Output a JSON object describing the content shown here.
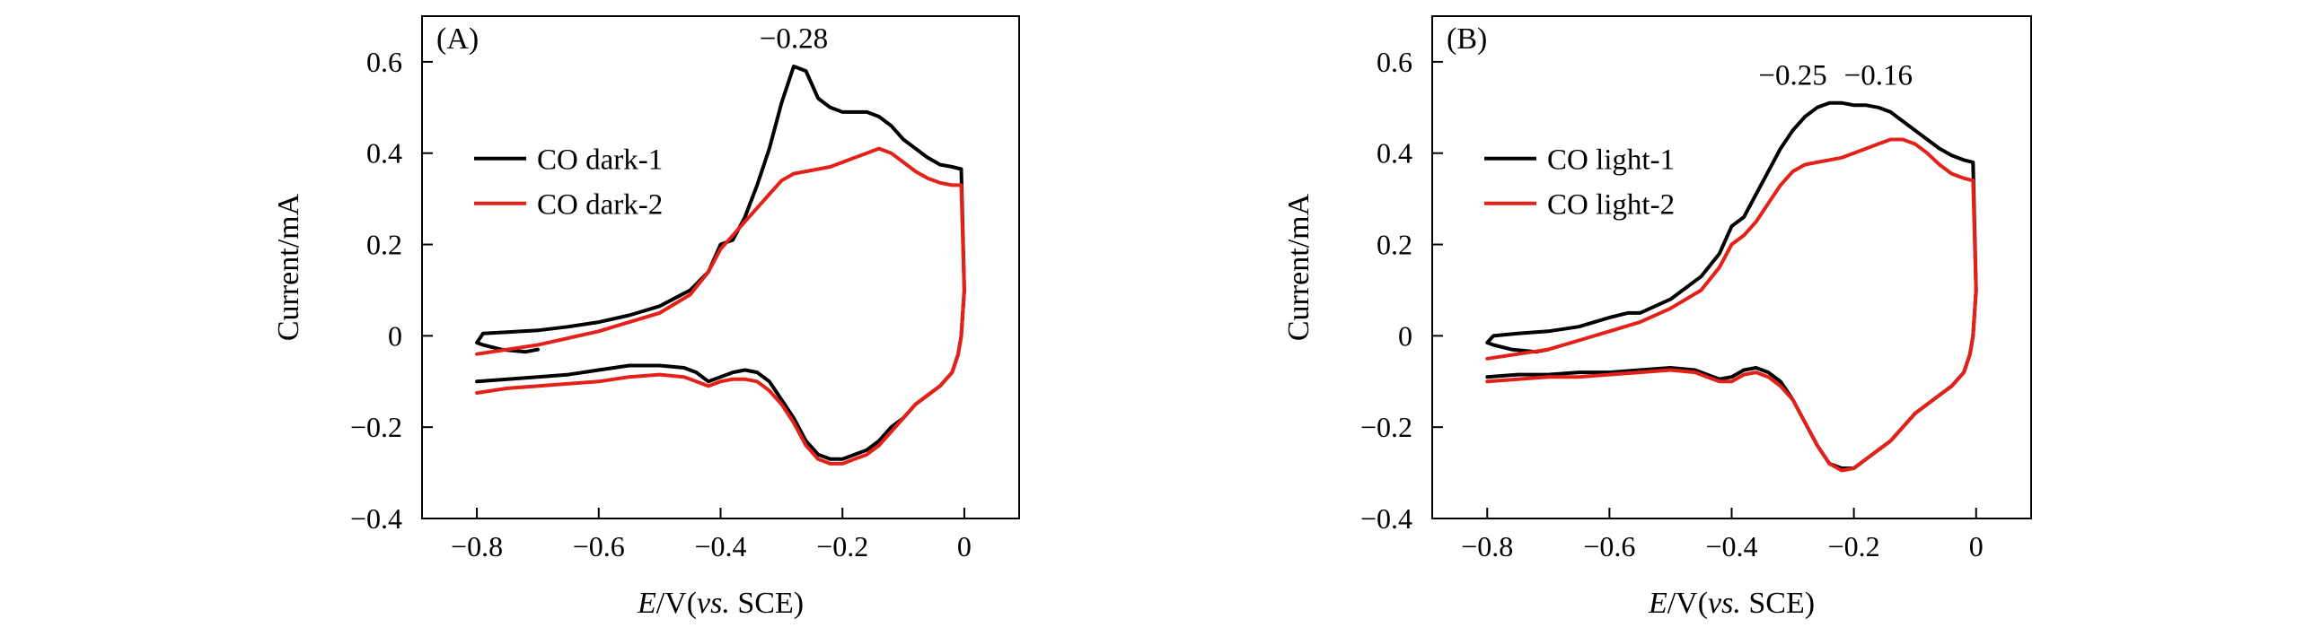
{
  "chart_data": [
    {
      "type": "line",
      "panel_label": "(A)",
      "xlabel_italic": "E",
      "xlabel_mid": "/V(",
      "xlabel_vs": "vs.",
      "xlabel_end": " SCE)",
      "ylabel": "Current/mA",
      "xlim": [
        -0.89,
        0.09
      ],
      "ylim": [
        -0.4,
        0.7
      ],
      "xticks": [
        -0.8,
        -0.6,
        -0.4,
        -0.2,
        0
      ],
      "xtick_labels": [
        "−0.8",
        "−0.6",
        "−0.4",
        "−0.2",
        "0"
      ],
      "yticks": [
        -0.4,
        -0.2,
        0,
        0.2,
        0.4,
        0.6
      ],
      "ytick_labels": [
        "−0.4",
        "−0.2",
        "0",
        "0.2",
        "0.4",
        "0.6"
      ],
      "legend_position": "upper-left",
      "annotations": [
        {
          "text": "−0.28",
          "x": -0.28,
          "y": 0.63
        }
      ],
      "series": [
        {
          "name": "CO dark-1",
          "color": "#000000",
          "x": [
            -0.7,
            -0.72,
            -0.76,
            -0.79,
            -0.8,
            -0.79,
            -0.75,
            -0.7,
            -0.65,
            -0.6,
            -0.55,
            -0.5,
            -0.45,
            -0.42,
            -0.4,
            -0.38,
            -0.36,
            -0.34,
            -0.32,
            -0.3,
            -0.28,
            -0.26,
            -0.24,
            -0.22,
            -0.2,
            -0.18,
            -0.16,
            -0.14,
            -0.12,
            -0.1,
            -0.08,
            -0.06,
            -0.04,
            -0.02,
            -0.005,
            0.0,
            -0.005,
            -0.01,
            -0.02,
            -0.04,
            -0.06,
            -0.08,
            -0.1,
            -0.12,
            -0.14,
            -0.16,
            -0.18,
            -0.2,
            -0.22,
            -0.24,
            -0.26,
            -0.28,
            -0.3,
            -0.32,
            -0.34,
            -0.36,
            -0.38,
            -0.4,
            -0.42,
            -0.44,
            -0.46,
            -0.5,
            -0.55,
            -0.6,
            -0.65,
            -0.7,
            -0.75,
            -0.8
          ],
          "y": [
            -0.03,
            -0.035,
            -0.03,
            -0.02,
            -0.015,
            0.005,
            0.008,
            0.012,
            0.02,
            0.03,
            0.045,
            0.065,
            0.1,
            0.14,
            0.2,
            0.21,
            0.26,
            0.33,
            0.41,
            0.51,
            0.59,
            0.58,
            0.52,
            0.5,
            0.49,
            0.49,
            0.49,
            0.48,
            0.46,
            0.43,
            0.41,
            0.39,
            0.375,
            0.37,
            0.365,
            0.1,
            0.0,
            -0.04,
            -0.08,
            -0.11,
            -0.13,
            -0.15,
            -0.18,
            -0.2,
            -0.23,
            -0.25,
            -0.26,
            -0.27,
            -0.27,
            -0.26,
            -0.23,
            -0.18,
            -0.14,
            -0.1,
            -0.08,
            -0.075,
            -0.08,
            -0.09,
            -0.1,
            -0.08,
            -0.07,
            -0.065,
            -0.065,
            -0.075,
            -0.085,
            -0.09,
            -0.095,
            -0.1
          ]
        },
        {
          "name": "CO dark-2",
          "color": "#e32119",
          "x": [
            -0.8,
            -0.75,
            -0.7,
            -0.65,
            -0.6,
            -0.55,
            -0.5,
            -0.45,
            -0.42,
            -0.4,
            -0.38,
            -0.36,
            -0.34,
            -0.32,
            -0.3,
            -0.28,
            -0.26,
            -0.24,
            -0.22,
            -0.2,
            -0.18,
            -0.16,
            -0.14,
            -0.12,
            -0.1,
            -0.08,
            -0.06,
            -0.04,
            -0.02,
            -0.005,
            0.0,
            -0.005,
            -0.01,
            -0.02,
            -0.04,
            -0.06,
            -0.08,
            -0.1,
            -0.12,
            -0.14,
            -0.16,
            -0.18,
            -0.2,
            -0.22,
            -0.24,
            -0.26,
            -0.28,
            -0.3,
            -0.32,
            -0.34,
            -0.36,
            -0.38,
            -0.4,
            -0.42,
            -0.44,
            -0.46,
            -0.5,
            -0.55,
            -0.6,
            -0.65,
            -0.7,
            -0.75,
            -0.8
          ],
          "y": [
            -0.04,
            -0.03,
            -0.02,
            -0.005,
            0.01,
            0.03,
            0.05,
            0.09,
            0.14,
            0.19,
            0.22,
            0.25,
            0.28,
            0.31,
            0.34,
            0.355,
            0.36,
            0.365,
            0.37,
            0.38,
            0.39,
            0.4,
            0.41,
            0.4,
            0.38,
            0.36,
            0.345,
            0.335,
            0.33,
            0.33,
            0.1,
            0.0,
            -0.04,
            -0.08,
            -0.11,
            -0.13,
            -0.15,
            -0.18,
            -0.21,
            -0.24,
            -0.26,
            -0.27,
            -0.28,
            -0.28,
            -0.27,
            -0.24,
            -0.19,
            -0.15,
            -0.12,
            -0.1,
            -0.095,
            -0.095,
            -0.1,
            -0.11,
            -0.1,
            -0.09,
            -0.085,
            -0.09,
            -0.1,
            -0.105,
            -0.11,
            -0.115,
            -0.125
          ]
        }
      ],
      "legend": [
        {
          "name": "CO dark-1",
          "color": "#000000"
        },
        {
          "name": "CO dark-2",
          "color": "#e32119"
        }
      ]
    },
    {
      "type": "line",
      "panel_label": "(B)",
      "xlabel_italic": "E",
      "xlabel_mid": "/V(",
      "xlabel_vs": "vs.",
      "xlabel_end": " SCE)",
      "ylabel": "Current/mA",
      "xlim": [
        -0.89,
        0.09
      ],
      "ylim": [
        -0.4,
        0.7
      ],
      "xticks": [
        -0.8,
        -0.6,
        -0.4,
        -0.2,
        0
      ],
      "xtick_labels": [
        "−0.8",
        "−0.6",
        "−0.4",
        "−0.2",
        "0"
      ],
      "yticks": [
        -0.4,
        -0.2,
        0,
        0.2,
        0.4,
        0.6
      ],
      "ytick_labels": [
        "−0.4",
        "−0.2",
        "0",
        "0.2",
        "0.4",
        "0.6"
      ],
      "legend_position": "upper-left",
      "annotations": [
        {
          "text": "−0.25",
          "x": -0.3,
          "y": 0.55
        },
        {
          "text": "−0.16",
          "x": -0.16,
          "y": 0.55
        }
      ],
      "series": [
        {
          "name": "CO light-1",
          "color": "#000000",
          "x": [
            -0.7,
            -0.72,
            -0.76,
            -0.79,
            -0.8,
            -0.79,
            -0.75,
            -0.7,
            -0.65,
            -0.6,
            -0.57,
            -0.55,
            -0.5,
            -0.45,
            -0.42,
            -0.4,
            -0.38,
            -0.36,
            -0.34,
            -0.32,
            -0.3,
            -0.28,
            -0.26,
            -0.24,
            -0.22,
            -0.2,
            -0.18,
            -0.16,
            -0.14,
            -0.12,
            -0.1,
            -0.08,
            -0.06,
            -0.04,
            -0.02,
            -0.005,
            0.0,
            -0.005,
            -0.01,
            -0.02,
            -0.04,
            -0.06,
            -0.08,
            -0.1,
            -0.12,
            -0.14,
            -0.16,
            -0.18,
            -0.2,
            -0.22,
            -0.24,
            -0.26,
            -0.28,
            -0.3,
            -0.32,
            -0.34,
            -0.36,
            -0.38,
            -0.4,
            -0.42,
            -0.44,
            -0.46,
            -0.5,
            -0.55,
            -0.6,
            -0.65,
            -0.7,
            -0.75,
            -0.8
          ],
          "y": [
            -0.03,
            -0.035,
            -0.03,
            -0.02,
            -0.015,
            0.0,
            0.005,
            0.01,
            0.02,
            0.04,
            0.05,
            0.05,
            0.08,
            0.13,
            0.18,
            0.24,
            0.26,
            0.31,
            0.36,
            0.41,
            0.45,
            0.48,
            0.5,
            0.51,
            0.51,
            0.505,
            0.505,
            0.5,
            0.49,
            0.47,
            0.45,
            0.43,
            0.41,
            0.395,
            0.385,
            0.38,
            0.1,
            0.0,
            -0.04,
            -0.08,
            -0.11,
            -0.13,
            -0.15,
            -0.17,
            -0.2,
            -0.23,
            -0.25,
            -0.27,
            -0.29,
            -0.29,
            -0.28,
            -0.24,
            -0.19,
            -0.14,
            -0.1,
            -0.08,
            -0.07,
            -0.075,
            -0.09,
            -0.095,
            -0.085,
            -0.075,
            -0.07,
            -0.075,
            -0.08,
            -0.08,
            -0.085,
            -0.085,
            -0.09
          ]
        },
        {
          "name": "CO light-2",
          "color": "#e32119",
          "x": [
            -0.8,
            -0.75,
            -0.7,
            -0.65,
            -0.6,
            -0.55,
            -0.5,
            -0.45,
            -0.42,
            -0.4,
            -0.38,
            -0.36,
            -0.34,
            -0.32,
            -0.3,
            -0.28,
            -0.26,
            -0.24,
            -0.22,
            -0.2,
            -0.18,
            -0.16,
            -0.14,
            -0.12,
            -0.1,
            -0.08,
            -0.06,
            -0.04,
            -0.02,
            -0.005,
            0.0,
            -0.005,
            -0.01,
            -0.02,
            -0.04,
            -0.06,
            -0.08,
            -0.1,
            -0.12,
            -0.14,
            -0.16,
            -0.18,
            -0.2,
            -0.22,
            -0.24,
            -0.26,
            -0.28,
            -0.3,
            -0.32,
            -0.34,
            -0.36,
            -0.38,
            -0.4,
            -0.42,
            -0.44,
            -0.46,
            -0.5,
            -0.55,
            -0.6,
            -0.65,
            -0.7,
            -0.75,
            -0.8
          ],
          "y": [
            -0.05,
            -0.04,
            -0.03,
            -0.01,
            0.01,
            0.03,
            0.06,
            0.1,
            0.15,
            0.2,
            0.22,
            0.25,
            0.29,
            0.33,
            0.36,
            0.375,
            0.38,
            0.385,
            0.39,
            0.4,
            0.41,
            0.42,
            0.43,
            0.43,
            0.42,
            0.4,
            0.375,
            0.355,
            0.345,
            0.34,
            0.1,
            0.0,
            -0.04,
            -0.08,
            -0.11,
            -0.13,
            -0.15,
            -0.17,
            -0.2,
            -0.23,
            -0.25,
            -0.27,
            -0.29,
            -0.295,
            -0.28,
            -0.24,
            -0.19,
            -0.14,
            -0.11,
            -0.09,
            -0.08,
            -0.085,
            -0.1,
            -0.1,
            -0.09,
            -0.08,
            -0.075,
            -0.08,
            -0.085,
            -0.09,
            -0.09,
            -0.095,
            -0.1
          ]
        }
      ],
      "legend": [
        {
          "name": "CO light-1",
          "color": "#000000"
        },
        {
          "name": "CO light-2",
          "color": "#e32119"
        }
      ]
    }
  ]
}
